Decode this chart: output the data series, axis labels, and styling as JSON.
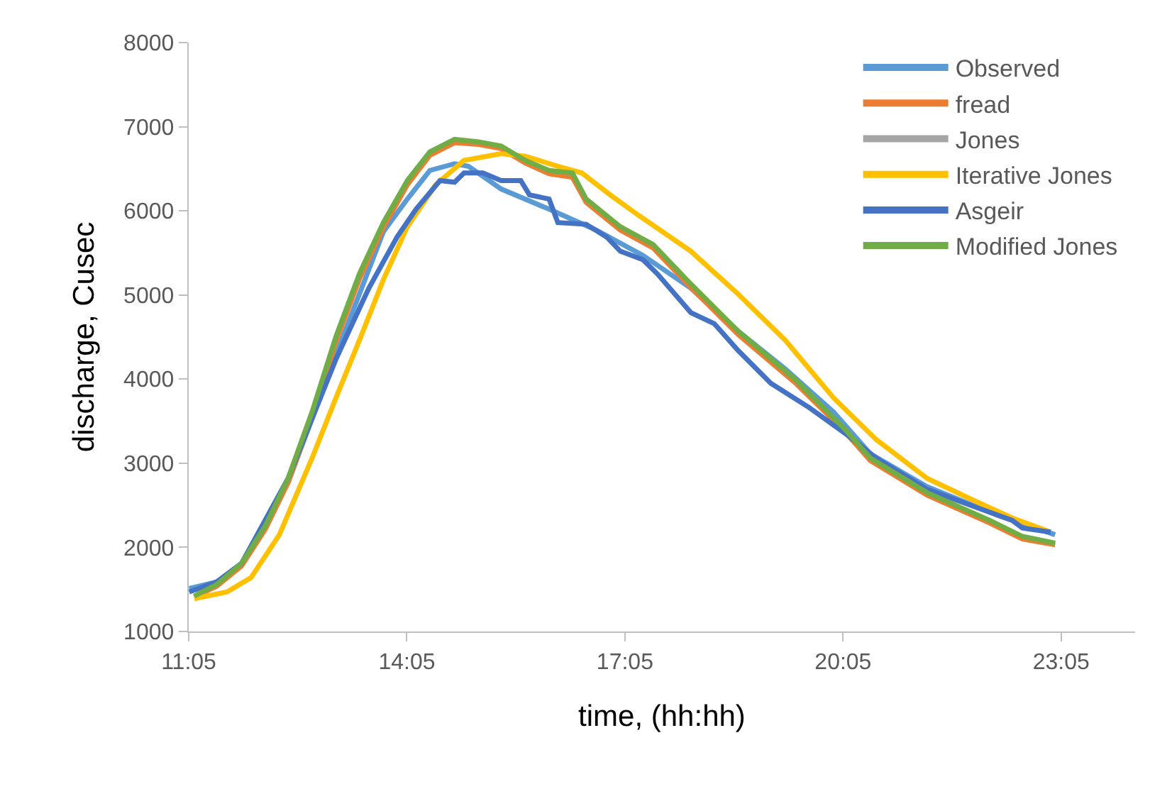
{
  "chart_data": {
    "type": "line",
    "xlabel": "time, (hh:hh)",
    "ylabel": "discharge, Cusec",
    "xlim": [
      11.0833,
      24.1
    ],
    "ylim": [
      1000,
      8000
    ],
    "xticks": [
      {
        "value": 11.0833,
        "label": "11:05"
      },
      {
        "value": 14.0833,
        "label": "14:05"
      },
      {
        "value": 17.0833,
        "label": "17:05"
      },
      {
        "value": 20.0833,
        "label": "20:05"
      },
      {
        "value": 23.0833,
        "label": "23:05"
      }
    ],
    "yticks": [
      1000,
      2000,
      3000,
      4000,
      5000,
      6000,
      7000,
      8000
    ],
    "grid": false,
    "legend": "top right",
    "marker": "none",
    "line_style": "solid",
    "series": [
      {
        "name": "Observed",
        "color": "#5b9bd5",
        "x": [
          11.09,
          11.47,
          11.81,
          12.45,
          13.11,
          13.76,
          14.09,
          14.4,
          14.74,
          14.93,
          15.38,
          16.04,
          16.69,
          17.33,
          17.99,
          18.64,
          19.29,
          19.95,
          20.46,
          21.24,
          22.22,
          23.0
        ],
        "values": [
          1510,
          1590,
          1810,
          2770,
          4290,
          5750,
          6140,
          6480,
          6560,
          6530,
          6260,
          6020,
          5770,
          5470,
          5080,
          4570,
          4120,
          3610,
          3110,
          2720,
          2380,
          2150
        ]
      },
      {
        "name": "fread",
        "color": "#ed7d31",
        "x": [
          11.16,
          11.47,
          11.81,
          12.14,
          12.45,
          12.78,
          13.11,
          13.43,
          13.76,
          14.09,
          14.4,
          14.74,
          15.07,
          15.38,
          15.71,
          16.04,
          16.36,
          16.55,
          17.02,
          17.47,
          17.99,
          18.64,
          19.42,
          20.07,
          20.46,
          21.24,
          22.1,
          22.55,
          23.0
        ],
        "values": [
          1410,
          1540,
          1780,
          2220,
          2770,
          3550,
          4450,
          5190,
          5800,
          6310,
          6660,
          6810,
          6790,
          6740,
          6570,
          6440,
          6400,
          6100,
          5770,
          5560,
          5090,
          4530,
          3960,
          3410,
          3030,
          2620,
          2290,
          2100,
          2030
        ]
      },
      {
        "name": "Jones",
        "color": "#a5a5a5",
        "values": [
          null,
          null
        ]
      },
      {
        "name": "Iterative Jones",
        "color": "#ffc000",
        "x": [
          11.16,
          11.61,
          11.94,
          12.33,
          12.78,
          13.11,
          13.43,
          13.76,
          14.09,
          14.48,
          14.87,
          15.38,
          15.71,
          16.16,
          16.49,
          16.88,
          17.28,
          17.99,
          18.64,
          19.29,
          19.95,
          20.54,
          21.24,
          21.9,
          22.41,
          22.94
        ],
        "values": [
          1390,
          1470,
          1640,
          2150,
          3060,
          3780,
          4460,
          5180,
          5810,
          6310,
          6600,
          6680,
          6650,
          6530,
          6450,
          6190,
          5940,
          5520,
          5010,
          4460,
          3780,
          3280,
          2820,
          2550,
          2350,
          2180
        ]
      },
      {
        "name": "Asgeir",
        "color": "#4472c4",
        "x": [
          11.09,
          11.47,
          11.81,
          12.45,
          13.11,
          13.56,
          13.95,
          14.21,
          14.54,
          14.74,
          14.87,
          15.13,
          15.38,
          15.65,
          15.77,
          16.04,
          16.16,
          16.55,
          16.83,
          17.02,
          17.33,
          17.53,
          17.99,
          18.31,
          18.64,
          19.09,
          19.62,
          20.15,
          20.54,
          21.24,
          21.9,
          22.41,
          22.55,
          22.94
        ],
        "values": [
          1470,
          1590,
          1810,
          2820,
          4240,
          5080,
          5690,
          6020,
          6360,
          6340,
          6450,
          6450,
          6360,
          6360,
          6190,
          6140,
          5860,
          5840,
          5690,
          5520,
          5420,
          5250,
          4790,
          4660,
          4340,
          3950,
          3660,
          3330,
          3060,
          2690,
          2480,
          2320,
          2230,
          2180
        ]
      },
      {
        "name": "Modified Jones",
        "color": "#70ad47",
        "x": [
          11.16,
          11.47,
          11.81,
          12.14,
          12.45,
          12.78,
          13.11,
          13.43,
          13.76,
          14.09,
          14.4,
          14.74,
          15.07,
          15.38,
          15.71,
          16.04,
          16.36,
          16.55,
          17.02,
          17.47,
          17.99,
          18.64,
          19.42,
          20.07,
          20.46,
          21.24,
          22.1,
          22.55,
          23.0
        ],
        "values": [
          1420,
          1560,
          1810,
          2260,
          2820,
          3610,
          4510,
          5250,
          5860,
          6360,
          6700,
          6850,
          6820,
          6770,
          6600,
          6480,
          6450,
          6140,
          5810,
          5600,
          5130,
          4570,
          4000,
          3440,
          3060,
          2650,
          2320,
          2130,
          2050
        ]
      }
    ]
  }
}
